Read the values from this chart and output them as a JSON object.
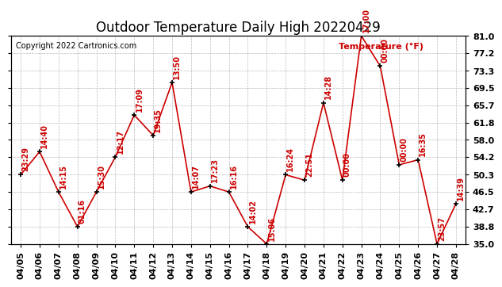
{
  "title": "Outdoor Temperature Daily High 20220429",
  "copyright": "Copyright 2022 Cartronics.com",
  "ylabel": "Temperature (°F)",
  "dates": [
    "04/05",
    "04/06",
    "04/07",
    "04/08",
    "04/09",
    "04/10",
    "04/11",
    "04/12",
    "04/13",
    "04/14",
    "04/15",
    "04/16",
    "04/17",
    "04/18",
    "04/19",
    "04/20",
    "04/21",
    "04/22",
    "04/23",
    "04/24",
    "04/25",
    "04/26",
    "04/27",
    "04/28"
  ],
  "values": [
    50.3,
    55.4,
    46.5,
    38.8,
    46.5,
    54.2,
    63.5,
    59.0,
    70.7,
    46.5,
    47.8,
    46.5,
    38.8,
    35.0,
    50.3,
    49.1,
    66.2,
    49.1,
    81.0,
    74.3,
    52.5,
    53.6,
    35.0,
    43.9
  ],
  "labels": [
    "23:29",
    "14:40",
    "14:15",
    "01:16",
    "15:30",
    "12:17",
    "17:09",
    "19:35",
    "13:50",
    "14:07",
    "17:23",
    "16:16",
    "14:02",
    "15:06",
    "16:24",
    "22:51",
    "14:28",
    "00:00",
    "17:00",
    "00:00",
    "00:00",
    "16:35",
    "23:57",
    "14:39"
  ],
  "ylim": [
    35.0,
    81.0
  ],
  "yticks": [
    35.0,
    38.8,
    42.7,
    46.5,
    50.3,
    54.2,
    58.0,
    61.8,
    65.7,
    69.5,
    73.3,
    77.2,
    81.0
  ],
  "line_color": "#cc0000",
  "marker_color": "#000000",
  "label_color": "#cc0000",
  "bg_color": "#ffffff",
  "grid_color": "#bbbbbb",
  "title_fontsize": 12,
  "label_fontsize": 7,
  "tick_fontsize": 8,
  "ylabel_fontsize": 8
}
